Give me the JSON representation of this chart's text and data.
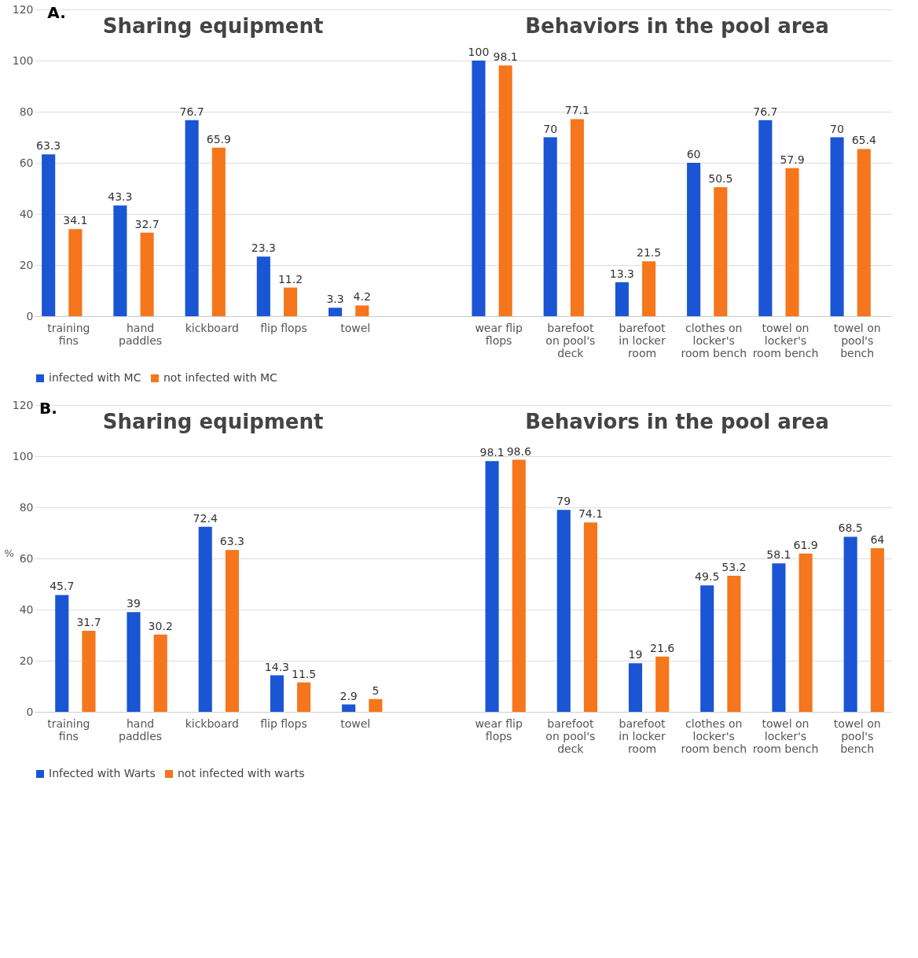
{
  "chart_data": [
    {
      "type": "bar",
      "title": "A.",
      "annotations": [
        "Sharing equipment",
        "Behaviors in the pool area"
      ],
      "categories": [
        "training fins",
        "hand paddles",
        "kickboard",
        "flip flops",
        "towel",
        null,
        "wear flip flops",
        "barefoot on pool's deck",
        "barefoot in locker room",
        "clothes on locker's room bench",
        "towel on locker's room bench",
        "towel on pool's bench"
      ],
      "series": [
        {
          "name": "infected with MC",
          "color": "#1a55d4",
          "values": [
            63.3,
            43.3,
            76.7,
            23.3,
            3.3,
            null,
            100,
            70,
            13.3,
            60,
            76.7,
            70
          ]
        },
        {
          "name": "not infected with MC",
          "color": "#f5761c",
          "values": [
            34.1,
            32.7,
            65.9,
            11.2,
            4.2,
            null,
            98.1,
            77.1,
            21.5,
            50.5,
            57.9,
            65.4
          ]
        }
      ],
      "ylim": [
        0,
        120
      ],
      "yticks": [
        0,
        20,
        40,
        60,
        80,
        100,
        120
      ],
      "grid": "y",
      "data_labels": true,
      "legend": "bottom left"
    },
    {
      "type": "bar",
      "title": "B.",
      "ylabel": "%",
      "annotations": [
        "Sharing equipment",
        "Behaviors in the pool area"
      ],
      "categories": [
        "training fins",
        "hand paddles",
        "kickboard",
        "flip flops",
        "towel",
        null,
        "wear flip flops",
        "barefoot on pool's deck",
        "barefoot in locker room",
        "clothes on locker's room bench",
        "towel on locker's room bench",
        "towel on pool's bench"
      ],
      "series": [
        {
          "name": "Infected with Warts",
          "color": "#1a55d4",
          "values": [
            45.7,
            39,
            72.4,
            14.3,
            2.9,
            null,
            98.1,
            79,
            19,
            49.5,
            58.1,
            68.5
          ]
        },
        {
          "name": "not infected with warts",
          "color": "#f5761c",
          "values": [
            31.7,
            30.2,
            63.3,
            11.5,
            5,
            null,
            98.6,
            74.1,
            21.6,
            53.2,
            61.9,
            64
          ]
        }
      ],
      "ylim": [
        0,
        120
      ],
      "yticks": [
        0,
        20,
        40,
        60,
        80,
        100,
        120
      ],
      "grid": "y",
      "data_labels": true,
      "legend": "bottom left"
    }
  ]
}
